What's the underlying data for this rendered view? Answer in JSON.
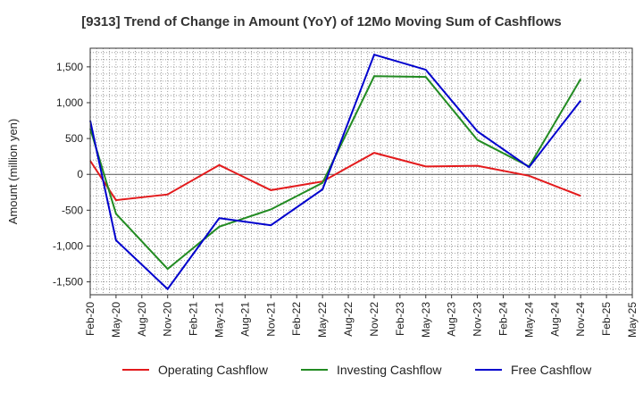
{
  "chart_data": {
    "type": "line",
    "title": "[9313]  Trend of Change in Amount (YoY) of 12Mo Moving Sum of Cashflows",
    "xlabel": "",
    "ylabel": "Amount (million yen)",
    "ylim": [
      -1680,
      1760
    ],
    "yticks": [
      1500,
      1000,
      500,
      0,
      -500,
      -1000,
      -1500
    ],
    "ytick_labels": [
      "1,500",
      "1,000",
      "500",
      "0",
      "-500",
      "-1,000",
      "-1,500"
    ],
    "categories": [
      "Feb-20",
      "May-20",
      "Aug-20",
      "Nov-20",
      "Feb-21",
      "May-21",
      "Aug-21",
      "Nov-21",
      "Feb-22",
      "May-22",
      "Aug-22",
      "Nov-22",
      "Feb-23",
      "May-23",
      "Aug-23",
      "Nov-23",
      "Feb-24",
      "May-24",
      "Aug-24",
      "Nov-24",
      "Feb-25",
      "May-25"
    ],
    "grid": true,
    "legend_position": "bottom",
    "series": [
      {
        "name": "Operating Cashflow",
        "color": "#e31a1c",
        "values": [
          190,
          -360,
          null,
          -280,
          null,
          130,
          null,
          -220,
          null,
          -100,
          null,
          300,
          null,
          110,
          null,
          120,
          null,
          -20,
          null,
          -300,
          null,
          null
        ]
      },
      {
        "name": "Investing Cashflow",
        "color": "#228b22",
        "values": [
          640,
          -550,
          null,
          -1320,
          null,
          -730,
          null,
          -490,
          null,
          -120,
          null,
          1370,
          null,
          1360,
          null,
          480,
          null,
          110,
          null,
          1330,
          null,
          null
        ]
      },
      {
        "name": "Free Cashflow",
        "color": "#0000cd",
        "values": [
          750,
          -920,
          null,
          -1600,
          null,
          -610,
          null,
          -710,
          null,
          -210,
          null,
          1670,
          null,
          1460,
          null,
          600,
          null,
          100,
          null,
          1030,
          null,
          null
        ]
      }
    ]
  }
}
